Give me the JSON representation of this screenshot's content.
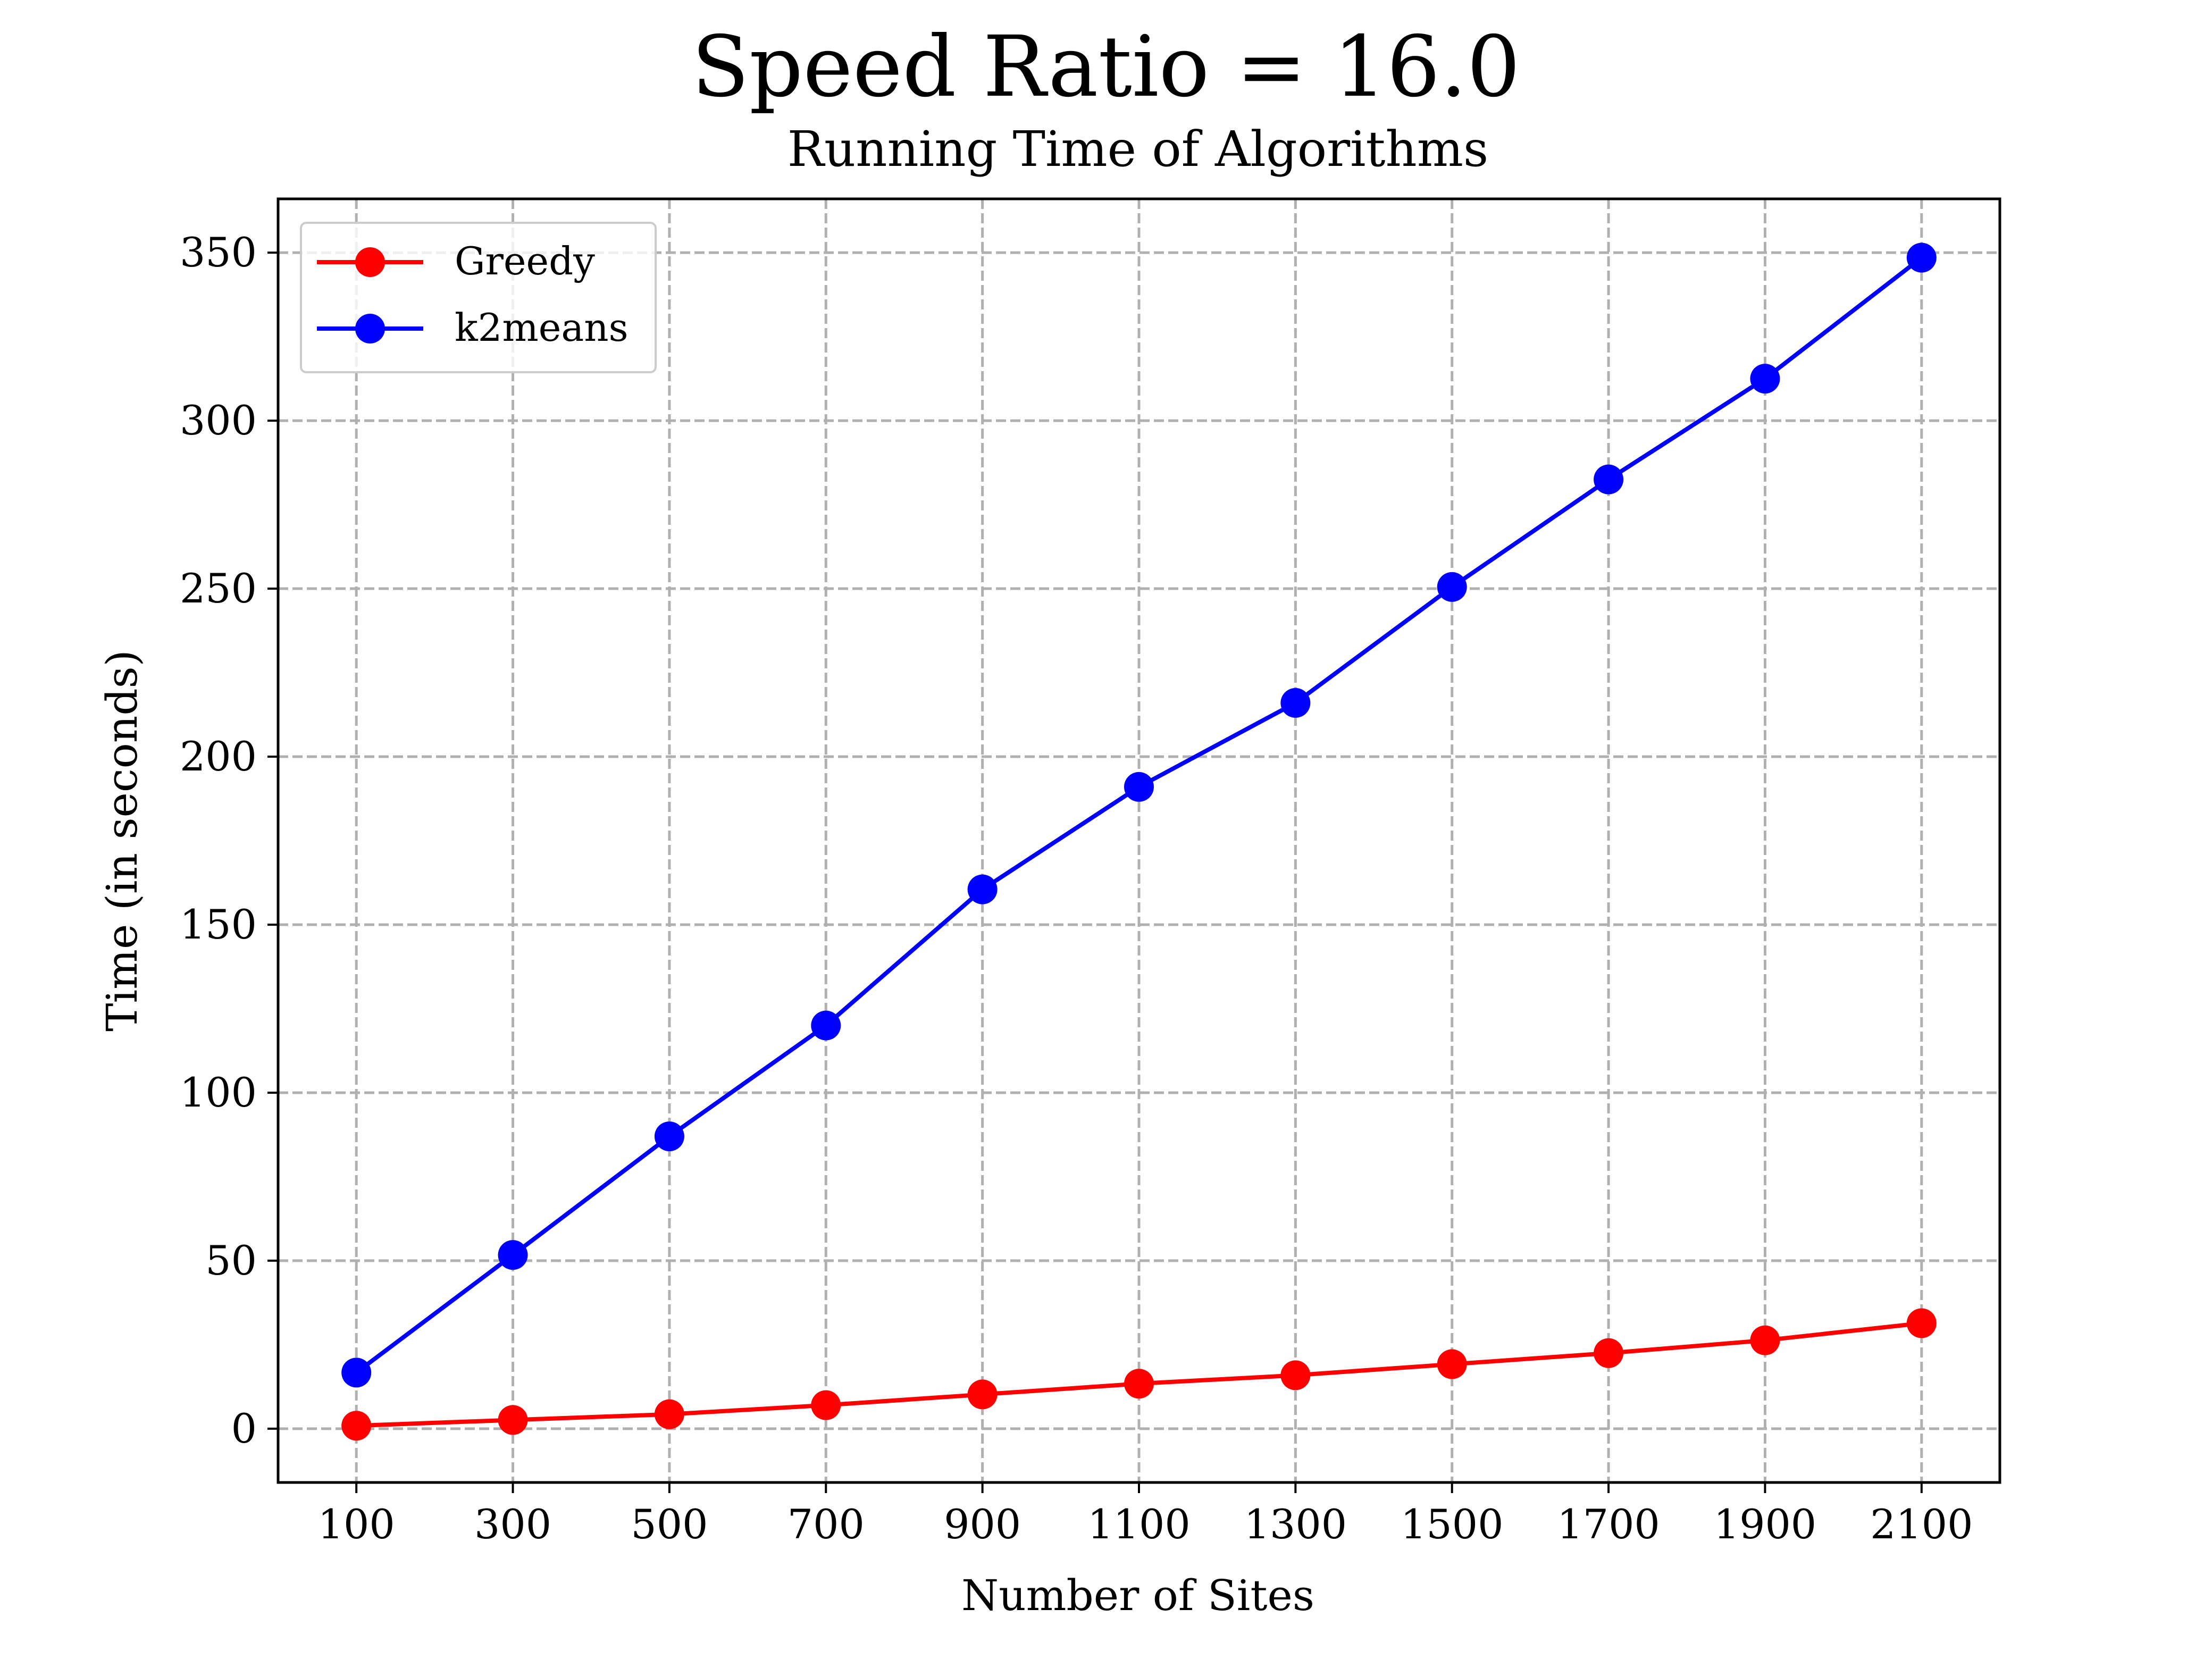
{
  "chart_data": {
    "type": "line",
    "suptitle": "Speed Ratio = 16.0",
    "title": "Running Time of Algorithms",
    "xlabel": "Number of Sites",
    "ylabel": "Time (in seconds)",
    "x": [
      100,
      300,
      500,
      700,
      900,
      1100,
      1300,
      1500,
      1700,
      1900,
      2100
    ],
    "xticks": [
      "100",
      "300",
      "500",
      "700",
      "900",
      "1100",
      "1300",
      "1500",
      "1700",
      "1900",
      "2100"
    ],
    "yticks": [
      "0",
      "50",
      "100",
      "150",
      "200",
      "250",
      "300",
      "350"
    ],
    "ytick_values": [
      0,
      50,
      100,
      150,
      200,
      250,
      300,
      350
    ],
    "xlim": [
      0,
      2200
    ],
    "ylim": [
      -16,
      366
    ],
    "grid": true,
    "legend_position": "top-left",
    "series": [
      {
        "name": "Greedy",
        "color": "#ff0000",
        "marker": "circle",
        "values": [
          0.9,
          2.6,
          4.3,
          7.0,
          10.2,
          13.4,
          15.9,
          19.2,
          22.5,
          26.3,
          31.4
        ]
      },
      {
        "name": "k2means",
        "color": "#0000ff",
        "marker": "circle",
        "values": [
          16.7,
          51.7,
          87.0,
          120.0,
          160.5,
          191.0,
          216.0,
          250.5,
          282.5,
          312.5,
          348.5
        ]
      }
    ]
  }
}
